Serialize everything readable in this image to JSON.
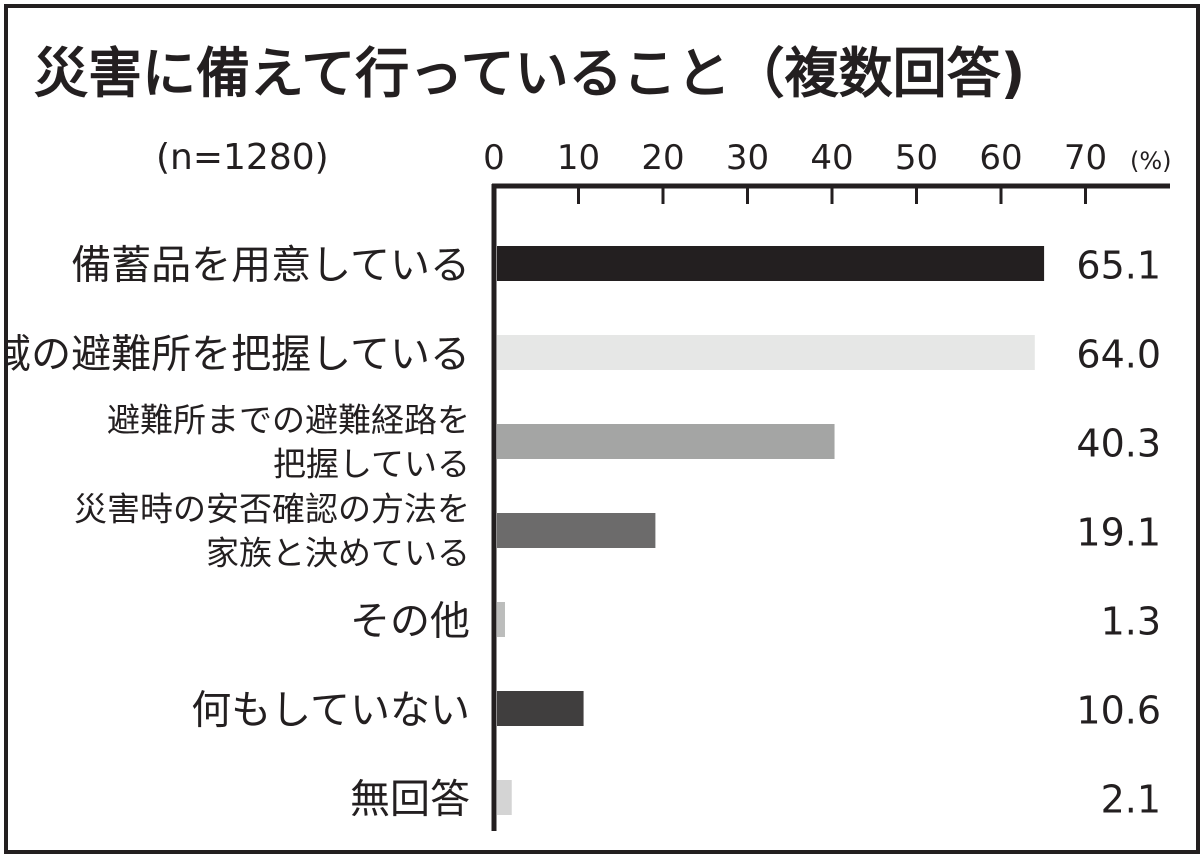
{
  "chart_data": {
    "type": "bar",
    "orientation": "horizontal",
    "title": "災害に備えて行っていること（複数回答)",
    "sample_size": "(n=1280)",
    "unit": "(%)",
    "xlim": [
      0,
      70
    ],
    "xticks": [
      "0",
      "10",
      "20",
      "30",
      "40",
      "50",
      "60",
      "70"
    ],
    "grid": false,
    "legend": "none",
    "categories": [
      [
        "備蓄品を用意している"
      ],
      [
        "地域の避難所を把握している"
      ],
      [
        "避難所までの避難経路を",
        "把握している"
      ],
      [
        "災害時の安否確認の方法を",
        "家族と決めている"
      ],
      [
        "その他"
      ],
      [
        "何もしていない"
      ],
      [
        "無回答"
      ]
    ],
    "values": [
      65.1,
      64.0,
      40.3,
      19.1,
      1.3,
      10.6,
      2.1
    ],
    "value_labels": [
      "65.1",
      "64.0",
      "40.3",
      "19.1",
      "1.3",
      "10.6",
      "2.1"
    ],
    "bar_colors": [
      "#231f20",
      "#e6e7e6",
      "#a4a5a4",
      "#6c6b6b",
      "#bcbdbc",
      "#403e3e",
      "#d4d4d4"
    ]
  },
  "colors": {
    "text": "#231f20",
    "axis": "#231f20",
    "background": "#ffffff"
  }
}
